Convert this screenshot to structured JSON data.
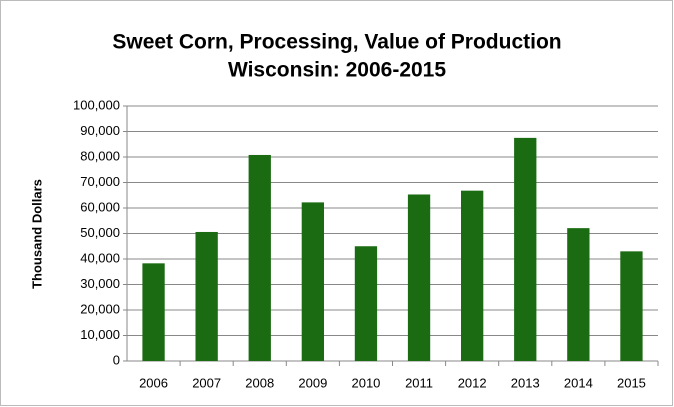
{
  "chart_data": {
    "type": "bar",
    "title": "Sweet Corn, Processing, Value of Production",
    "subtitle": "Wisconsin:  2006-2015",
    "y_label": "Thousand Dollars",
    "categories": [
      "2006",
      "2007",
      "2008",
      "2009",
      "2010",
      "2011",
      "2012",
      "2013",
      "2014",
      "2015"
    ],
    "values": [
      38300,
      50600,
      80800,
      62200,
      45000,
      65300,
      66800,
      87500,
      52100,
      43000
    ],
    "color": "#1b6b12",
    "ylim": [
      0,
      100000
    ],
    "yticks": [
      0,
      {
        "value": 10000,
        "label": "10,000"
      },
      {
        "value": 20000,
        "label": "20,000"
      },
      {
        "value": 30000,
        "label": "30,000"
      },
      {
        "value": 40000,
        "label": "40,000"
      },
      {
        "value": 50000,
        "label": "50,000"
      },
      {
        "value": 60000,
        "label": "60,000"
      },
      {
        "value": 70000,
        "label": "70,000"
      },
      {
        "value": 80000,
        "label": "80,000"
      },
      {
        "value": 90000,
        "label": "90,000"
      },
      {
        "value": 100000,
        "label": "100,000"
      }
    ],
    "grid": true
  }
}
